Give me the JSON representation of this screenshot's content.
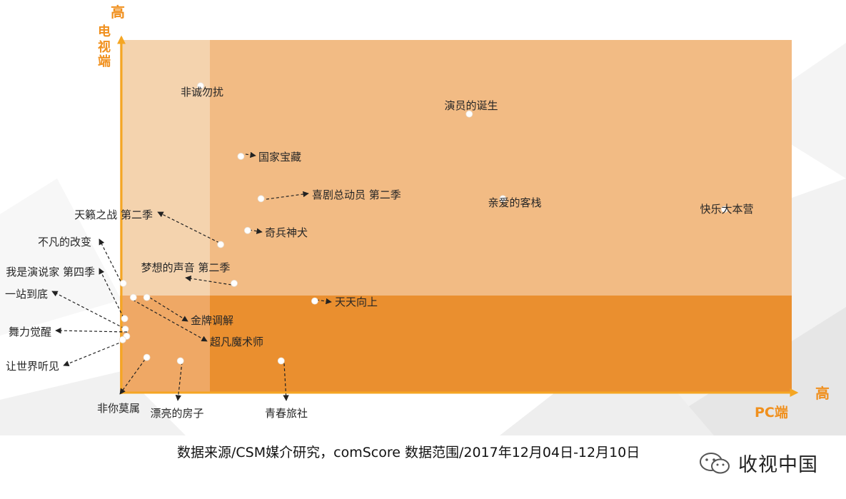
{
  "chart_data": {
    "type": "scatter",
    "x_axis": {
      "label": "PC端",
      "high_label": "高"
    },
    "y_axis": {
      "label": "电视端",
      "high_label": "高"
    },
    "points": [
      {
        "name": "非诚勿扰",
        "x": 0.12,
        "y": 0.87
      },
      {
        "name": "演员的诞生",
        "x": 0.52,
        "y": 0.79
      },
      {
        "name": "国家宝藏",
        "x": 0.18,
        "y": 0.67
      },
      {
        "name": "喜剧总动员 第二季",
        "x": 0.21,
        "y": 0.55
      },
      {
        "name": "亲爱的客栈",
        "x": 0.57,
        "y": 0.55
      },
      {
        "name": "快乐大本营",
        "x": 0.9,
        "y": 0.52
      },
      {
        "name": "天籁之战 第二季",
        "x": 0.15,
        "y": 0.42
      },
      {
        "name": "奇兵神犬",
        "x": 0.19,
        "y": 0.46
      },
      {
        "name": "梦想的声音 第二季",
        "x": 0.17,
        "y": 0.31
      },
      {
        "name": "天天向上",
        "x": 0.29,
        "y": 0.26
      },
      {
        "name": "金牌调解",
        "x": 0.04,
        "y": 0.27
      },
      {
        "name": "超凡魔术师",
        "x": 0.02,
        "y": 0.27
      },
      {
        "name": "不凡的改变",
        "x": 0.005,
        "y": 0.31
      },
      {
        "name": "我是演说家 第四季",
        "x": 0.007,
        "y": 0.21
      },
      {
        "name": "一站到底",
        "x": 0.008,
        "y": 0.18
      },
      {
        "name": "舞力觉醒",
        "x": 0.01,
        "y": 0.16
      },
      {
        "name": "让世界听见",
        "x": 0.004,
        "y": 0.15
      },
      {
        "name": "非你莫属",
        "x": 0.04,
        "y": 0.1
      },
      {
        "name": "漂亮的房子",
        "x": 0.09,
        "y": 0.09
      },
      {
        "name": "青春旅社",
        "x": 0.24,
        "y": 0.09
      }
    ],
    "colors": {
      "axis": "#f5a623",
      "region_high_tv": "#f2bb84",
      "region_high_tv_left": "#f4d3ae",
      "region_low_tv": "#ea8f2f",
      "region_low_tv_left": "#efa865"
    }
  },
  "footer": {
    "source": "数据来源/CSM媒介研究，comScore   数据范围/2017年12月04日-12月10日",
    "brand": "收视中国",
    "brand_icon": "wechat-icon"
  }
}
